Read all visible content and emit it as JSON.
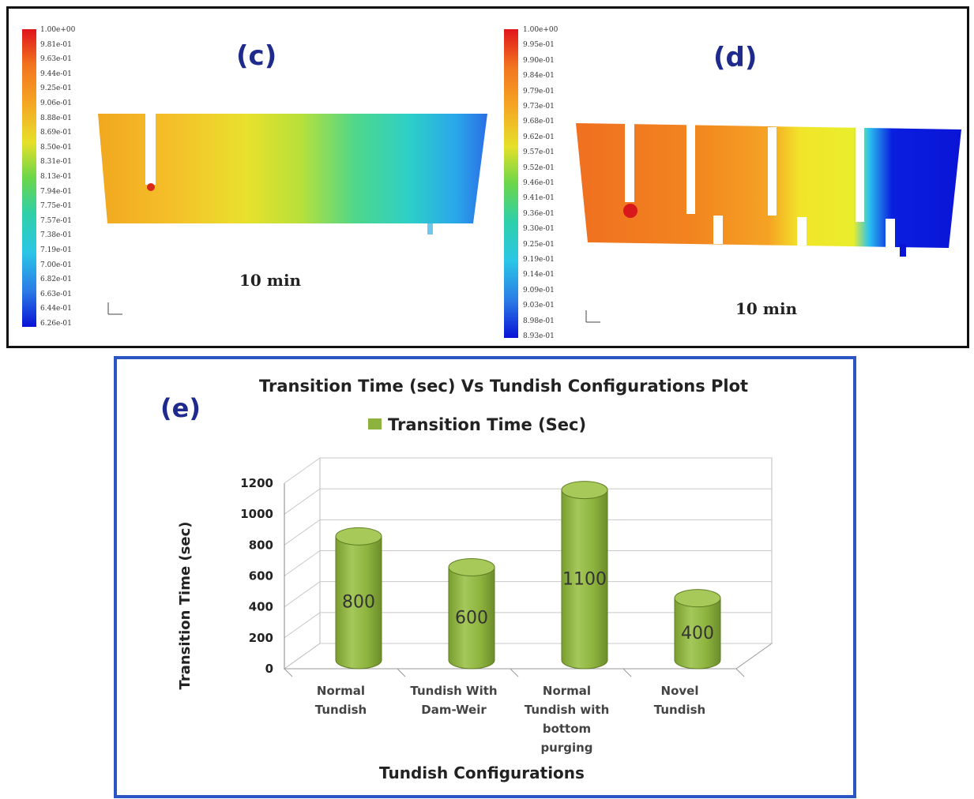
{
  "panels": {
    "c": {
      "label": "(c)",
      "time": "10 min",
      "colorbar": [
        "1.00e+00",
        "9.81e-01",
        "9.63e-01",
        "9.44e-01",
        "9.25e-01",
        "9.06e-01",
        "8.88e-01",
        "8.69e-01",
        "8.50e-01",
        "8.31e-01",
        "8.13e-01",
        "7.94e-01",
        "7.75e-01",
        "7.57e-01",
        "7.38e-01",
        "7.19e-01",
        "7.00e-01",
        "6.82e-01",
        "6.63e-01",
        "6.44e-01",
        "6.26e-01"
      ]
    },
    "d": {
      "label": "(d)",
      "time": "10 min",
      "colorbar": [
        "1.00e+00",
        "9.95e-01",
        "9.90e-01",
        "9.84e-01",
        "9.79e-01",
        "9.73e-01",
        "9.68e-01",
        "9.62e-01",
        "9.57e-01",
        "9.52e-01",
        "9.46e-01",
        "9.41e-01",
        "9.36e-01",
        "9.30e-01",
        "9.25e-01",
        "9.19e-01",
        "9.14e-01",
        "9.09e-01",
        "9.03e-01",
        "8.98e-01",
        "8.93e-01"
      ]
    }
  },
  "colors": {
    "bar_fill": "#8db33e",
    "bar_top": "#a6c95a",
    "panel_border": "#2b55c2",
    "label_blue": "#1e2b8c"
  },
  "chart_data": {
    "type": "bar",
    "panel_label": "(e)",
    "title": "Transition Time (sec) Vs Tundish Configurations Plot",
    "xlabel": "Tundish Configurations",
    "ylabel": "Transition Time (sec)",
    "ylim": [
      0,
      1200
    ],
    "yticks": [
      0,
      200,
      400,
      600,
      800,
      1000,
      1200
    ],
    "legend_position": "top",
    "categories": [
      [
        "Normal",
        "Tundish"
      ],
      [
        "Tundish With",
        "Dam-Weir"
      ],
      [
        "Normal",
        "Tundish with",
        "bottom",
        "purging"
      ],
      [
        "Novel",
        "Tundish"
      ]
    ],
    "series": [
      {
        "name": "Transition Time (Sec)",
        "values": [
          800,
          600,
          1100,
          400
        ]
      }
    ],
    "grid": true
  }
}
